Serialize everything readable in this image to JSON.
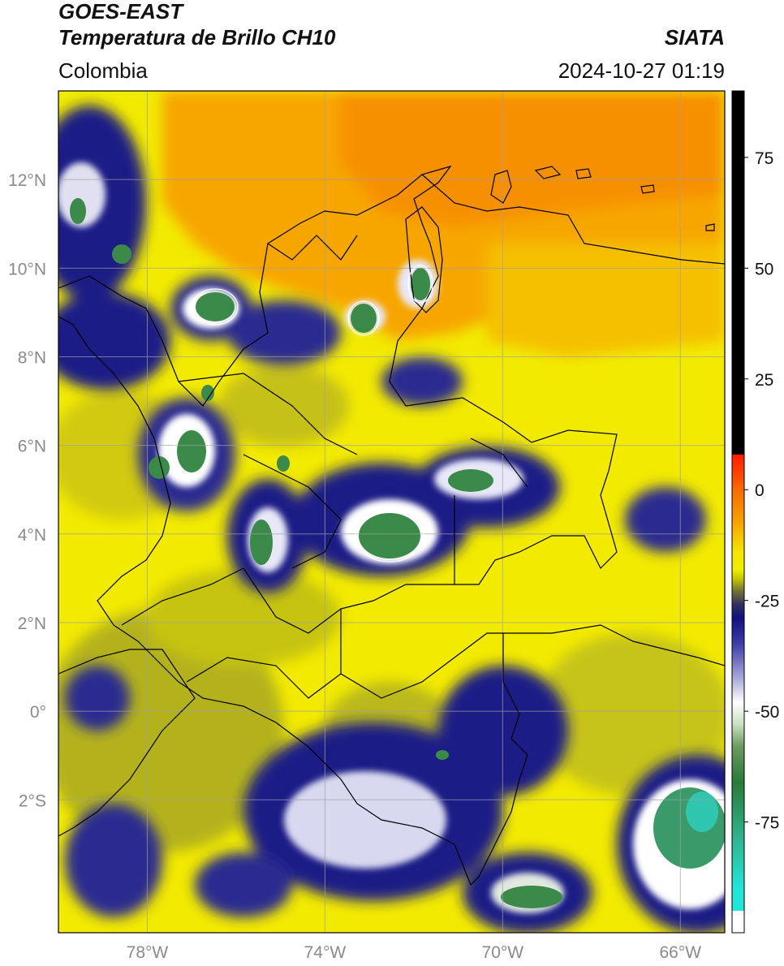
{
  "header": {
    "line1": "GOES-EAST",
    "line2": "Temperatura de Brillo CH10",
    "region": "Colombia",
    "brand": "SIATA",
    "datetime": "2024-10-27 01:19"
  },
  "map": {
    "lon_range": [
      -80,
      -65
    ],
    "lat_range": [
      -5,
      14
    ],
    "lat_ticks": [
      {
        "value": 12,
        "label": "12°N"
      },
      {
        "value": 10,
        "label": "10°N"
      },
      {
        "value": 8,
        "label": "8°N"
      },
      {
        "value": 6,
        "label": "6°N"
      },
      {
        "value": 4,
        "label": "4°N"
      },
      {
        "value": 2,
        "label": "2°N"
      },
      {
        "value": 0,
        "label": "0°"
      },
      {
        "value": -2,
        "label": "2°S"
      }
    ],
    "lon_ticks": [
      {
        "value": -78,
        "label": "78°W"
      },
      {
        "value": -74,
        "label": "74°W"
      },
      {
        "value": -70,
        "label": "70°W"
      },
      {
        "value": -66,
        "label": "66°W"
      }
    ],
    "gridlines": true,
    "colors": {
      "warm_sea": "#f7a600",
      "land_yellow": "#f2ea00",
      "olive": "#9a9a20",
      "navy": "#1b1b86",
      "white": "#ffffff",
      "green": "#3b8a4a",
      "teal": "#2fd6c6",
      "border": "#000000"
    }
  },
  "colorbar": {
    "range": [
      -100,
      90
    ],
    "ticks": [
      {
        "value": 75,
        "label": "75"
      },
      {
        "value": 50,
        "label": "50"
      },
      {
        "value": 25,
        "label": "25"
      },
      {
        "value": 0,
        "label": "0"
      },
      {
        "value": -25,
        "label": "-25"
      },
      {
        "value": -50,
        "label": "-50"
      },
      {
        "value": -75,
        "label": "-75"
      }
    ],
    "stops": [
      {
        "value": 90,
        "color": "#000000"
      },
      {
        "value": 8,
        "color": "#000000"
      },
      {
        "value": 7.9,
        "color": "#ff1a00"
      },
      {
        "value": 0,
        "color": "#f86a00"
      },
      {
        "value": -8,
        "color": "#f8a800"
      },
      {
        "value": -14,
        "color": "#f5e600"
      },
      {
        "value": -18,
        "color": "#f0ee00"
      },
      {
        "value": -20,
        "color": "#c8c800"
      },
      {
        "value": -23,
        "color": "#707038"
      },
      {
        "value": -26,
        "color": "#303060"
      },
      {
        "value": -29,
        "color": "#101080"
      },
      {
        "value": -35,
        "color": "#4040a8"
      },
      {
        "value": -43,
        "color": "#b0b0dc"
      },
      {
        "value": -48,
        "color": "#ffffff"
      },
      {
        "value": -53,
        "color": "#c8e0c0"
      },
      {
        "value": -58,
        "color": "#6a9a60"
      },
      {
        "value": -66,
        "color": "#2a7a3a"
      },
      {
        "value": -78,
        "color": "#30b08a"
      },
      {
        "value": -90,
        "color": "#22e6d8"
      },
      {
        "value": -95,
        "color": "#22e6d8"
      },
      {
        "value": -95.1,
        "color": "#ffffff"
      },
      {
        "value": -100,
        "color": "#ffffff"
      }
    ]
  }
}
